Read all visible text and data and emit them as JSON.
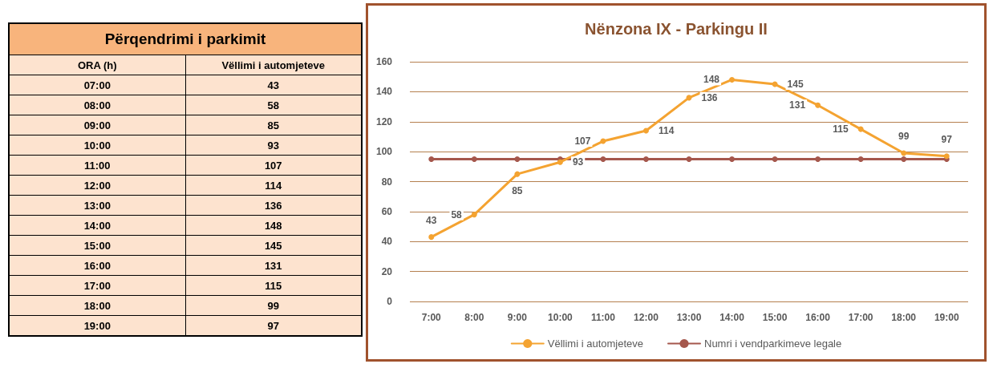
{
  "chart_data": {
    "type": "line",
    "title": "Nënzona IX - Parkingu II",
    "categories": [
      "7:00",
      "8:00",
      "9:00",
      "10:00",
      "11:00",
      "12:00",
      "13:00",
      "14:00",
      "15:00",
      "16:00",
      "17:00",
      "18:00",
      "19:00"
    ],
    "series": [
      {
        "name": "Vëllimi i automjeteve",
        "color": "#f4a331",
        "values": [
          43,
          58,
          85,
          93,
          107,
          114,
          136,
          148,
          145,
          131,
          115,
          99,
          97
        ],
        "value_labels": [
          "43",
          "58",
          "85",
          "93",
          "107",
          "114",
          "136",
          "148",
          "145",
          "131",
          "115",
          "99",
          "97"
        ]
      },
      {
        "name": "Numri i vendparkimeve legale",
        "color": "#a5574c",
        "values": [
          95,
          95,
          95,
          95,
          95,
          95,
          95,
          95,
          95,
          95,
          95,
          95,
          95
        ]
      }
    ],
    "annotations": [
      "Përqendrimi i parkimit",
      "ORA (h)",
      "Vëllimi i automjeteve",
      "07:00",
      "08:00",
      "09:00",
      "10:00",
      "11:00",
      "12:00",
      "13:00",
      "14:00",
      "15:00",
      "16:00",
      "17:00",
      "18:00",
      "19:00"
    ],
    "ylim": [
      0,
      160
    ],
    "yticks": [
      0,
      20,
      40,
      60,
      80,
      100,
      120,
      140,
      160
    ],
    "grid": "y",
    "legend": "bottom",
    "marker": "circle",
    "line_style": "solid"
  }
}
